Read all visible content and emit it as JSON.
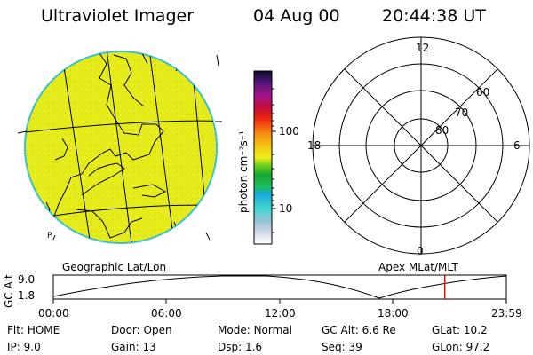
{
  "header": {
    "instrument": "Ultraviolet Imager",
    "date": "04 Aug 00",
    "time": "20:44:38 UT"
  },
  "colorbar": {
    "unit_label": "photon cm⁻²s⁻¹",
    "ticks": [
      "100",
      "10"
    ]
  },
  "polar_plot": {
    "mlt_labels": [
      "12",
      "18",
      "6",
      "0"
    ],
    "lat_labels": [
      "60",
      "70",
      "80"
    ]
  },
  "globe": {
    "fill_color": "#e8ee18",
    "limb_color": "#3fbfcf"
  },
  "section_labels": {
    "geographic": "Geographic Lat/Lon",
    "apex": "Apex MLat/MLT"
  },
  "altitude_plot": {
    "axis_label": "GC Alt",
    "y_ticks": [
      "9.0",
      "1.8"
    ],
    "x_ticks": [
      "00:00",
      "06:00",
      "12:00",
      "18:00",
      "23:59"
    ],
    "current_time_marker_hours": 20.74
  },
  "status": {
    "row1": [
      {
        "label": "Flt:",
        "value": "HOME"
      },
      {
        "label": "Door:",
        "value": "Open"
      },
      {
        "label": "Mode:",
        "value": "Normal"
      },
      {
        "label": "GC Alt:",
        "value": "6.6 Re"
      },
      {
        "label": "GLat:",
        "value": "10.2"
      }
    ],
    "row2": [
      {
        "label": "IP:",
        "value": "9.0"
      },
      {
        "label": "Gain:",
        "value": "13"
      },
      {
        "label": "Dsp:",
        "value": "1.6"
      },
      {
        "label": "Seq:",
        "value": "39"
      },
      {
        "label": "GLon:",
        "value": "97.2"
      }
    ]
  }
}
